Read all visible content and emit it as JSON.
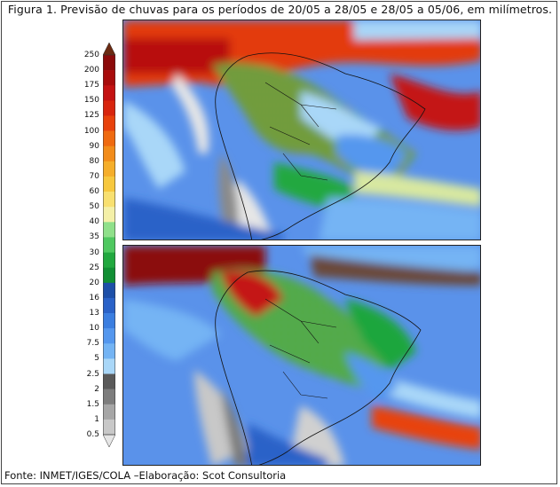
{
  "title": "Figura 1. Previsão de chuvas para os períodos de 20/05 a 28/05 e 28/05 a 05/06, em milímetros.",
  "footer": "Fonte: INMET/IGES/COLA –Elaboração: Scot Consultoria",
  "colorbar": {
    "unit": "mm",
    "levels": [
      "250",
      "200",
      "175",
      "150",
      "125",
      "100",
      "90",
      "80",
      "70",
      "60",
      "50",
      "40",
      "35",
      "30",
      "25",
      "20",
      "16",
      "13",
      "10",
      "7.5",
      "5",
      "2.5",
      "2",
      "1.5",
      "1",
      "0.5"
    ],
    "colors": [
      "#6b2a12",
      "#8b0a0a",
      "#a80c0c",
      "#c41212",
      "#d8250e",
      "#e8420c",
      "#ef6a10",
      "#f28c1a",
      "#f5ae2a",
      "#f7c83e",
      "#f8e070",
      "#f4f0a8",
      "#8fe08a",
      "#4fc860",
      "#21a83f",
      "#118f34",
      "#1d4fa8",
      "#2a62c8",
      "#3b7ee0",
      "#5497ee",
      "#74b4f4",
      "#a9d7f8",
      "#5a5a5a",
      "#7d7d7d",
      "#a6a6a6",
      "#c8c8c8",
      "#e6e6e6"
    ]
  },
  "maps": [
    {
      "name": "period-1",
      "period": "20/05 a 28/05"
    },
    {
      "name": "period-2",
      "period": "28/05 a 05/06"
    }
  ]
}
